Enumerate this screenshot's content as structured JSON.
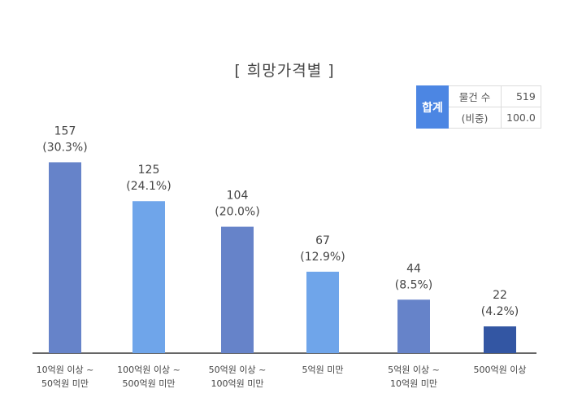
{
  "title": "[ 희망가격별 ]",
  "summary": {
    "header": "합계",
    "rows": [
      {
        "label": "물건 수",
        "value": "519"
      },
      {
        "label": "(비중)",
        "value": "100.0"
      }
    ]
  },
  "colors": {
    "bars": [
      "#6683c9",
      "#6fa5ea",
      "#6683c9",
      "#6fa5ea",
      "#6683c9",
      "#3356a3"
    ],
    "axis": "#333333",
    "label_text": "#444444"
  },
  "chart_data": {
    "type": "bar",
    "title": "[ 희망가격별 ]",
    "xlabel": "",
    "ylabel": "",
    "grid": false,
    "categories": [
      [
        "10억원 이상 ~",
        "50억원 미만"
      ],
      [
        "100억원 이상 ~",
        "500억원 미만"
      ],
      [
        "50억원 이상 ~",
        "100억원 미만"
      ],
      [
        "5억원 미만"
      ],
      [
        "5억원 이상 ~",
        "10억원 미만"
      ],
      [
        "500억원 이상"
      ]
    ],
    "values": [
      157,
      125,
      104,
      67,
      44,
      22
    ],
    "percent_labels": [
      "(30.3%)",
      "(24.1%)",
      "(20.0%)",
      "(12.9%)",
      "(8.5%)",
      "(4.2%)"
    ],
    "ylim": [
      0,
      170
    ]
  }
}
